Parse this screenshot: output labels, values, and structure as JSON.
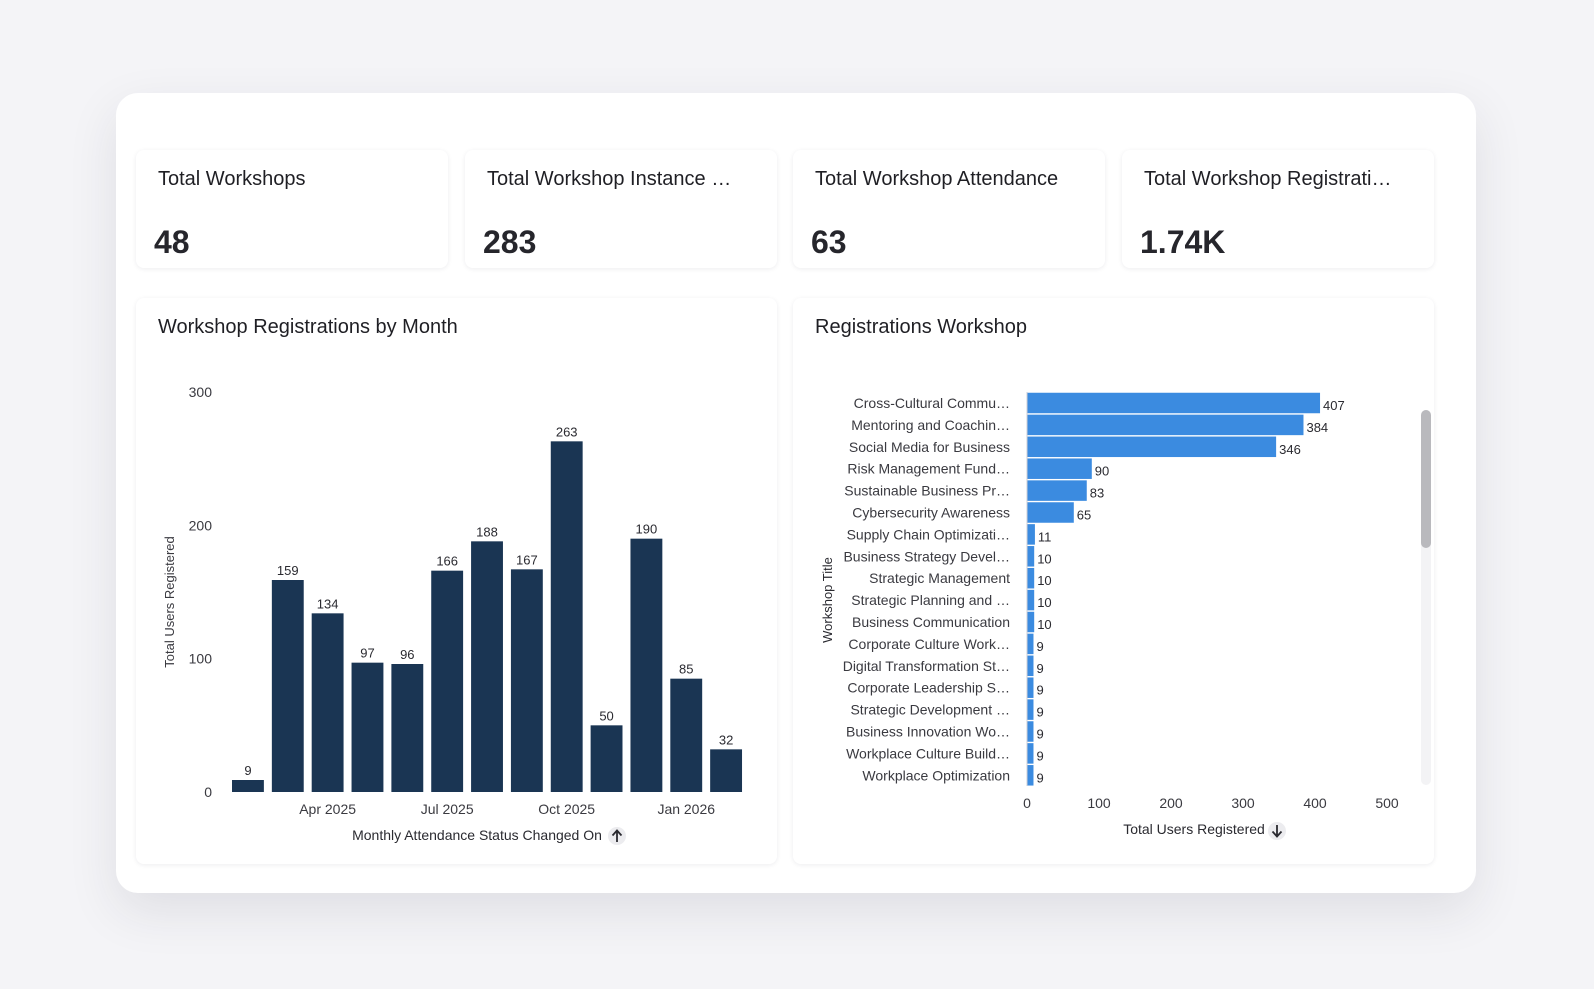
{
  "kpis": [
    {
      "title": "Total Workshops",
      "value": "48"
    },
    {
      "title": "Total Workshop Instance …",
      "value": "283"
    },
    {
      "title": "Total Workshop Attendance",
      "value": "63"
    },
    {
      "title": "Total Workshop Registrati…",
      "value": "1.74K"
    }
  ],
  "month_chart": {
    "title": "Workshop Registrations by Month",
    "sort_icon": "arrow-up-icon"
  },
  "workshop_chart": {
    "title": "Registrations Workshop",
    "sort_icon": "arrow-down-icon"
  },
  "chart_data": [
    {
      "type": "bar",
      "title": "Workshop Registrations by Month",
      "xlabel": "Monthly Attendance Status Changed On",
      "ylabel": "Total Users Registered",
      "ylim": [
        0,
        300
      ],
      "yticks": [
        0,
        100,
        200,
        300
      ],
      "xtick_labels": [
        {
          "label": "Apr 2025",
          "index": 2
        },
        {
          "label": "Jul 2025",
          "index": 5
        },
        {
          "label": "Oct 2025",
          "index": 8
        },
        {
          "label": "Jan 2026",
          "index": 11
        }
      ],
      "values": [
        9,
        159,
        134,
        97,
        96,
        166,
        188,
        167,
        263,
        50,
        190,
        85,
        32
      ],
      "color": "#1a3553",
      "grid": false
    },
    {
      "type": "bar",
      "orientation": "horizontal",
      "title": "Registrations Workshop",
      "xlabel": "Total Users Registered",
      "ylabel": "Workshop Title",
      "xlim": [
        0,
        500
      ],
      "xticks": [
        0,
        100,
        200,
        300,
        400,
        500
      ],
      "categories": [
        "Cross-Cultural Commu…",
        "Mentoring and Coachin…",
        "Social Media for Business",
        "Risk Management Fund…",
        "Sustainable Business Pr…",
        "Cybersecurity Awareness",
        "Supply Chain Optimizati…",
        "Business Strategy Devel…",
        "Strategic Management",
        "Strategic Planning and …",
        "Business Communication",
        "Corporate Culture Work…",
        "Digital Transformation St…",
        "Corporate Leadership S…",
        "Strategic Development …",
        "Business Innovation Wo…",
        "Workplace Culture Build…",
        "Workplace Optimization"
      ],
      "values": [
        407,
        384,
        346,
        90,
        83,
        65,
        11,
        10,
        10,
        10,
        10,
        9,
        9,
        9,
        9,
        9,
        9,
        9
      ],
      "color": "#3b8be0",
      "grid": false
    }
  ]
}
